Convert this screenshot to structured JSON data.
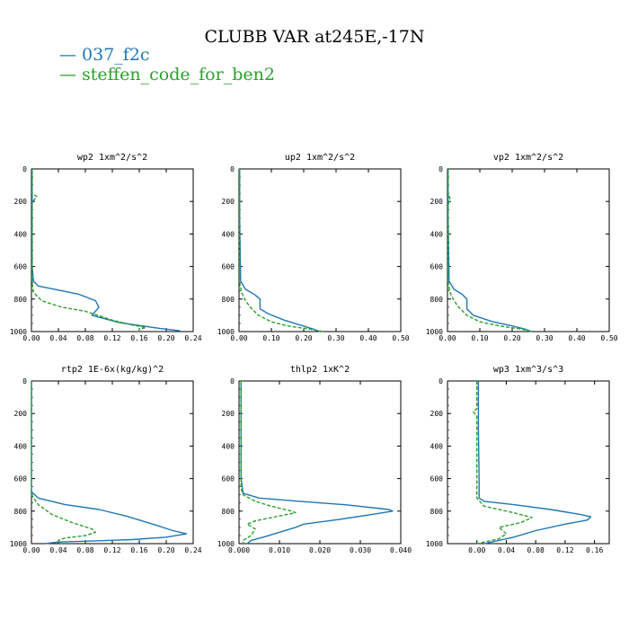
{
  "title": "CLUBB VAR at245E,-17N",
  "legend": [
    {
      "label": "— 037_f2c",
      "color": "#1f77b4"
    },
    {
      "label": "— steffen_code_for_ben2",
      "color": "#2ca02c"
    }
  ],
  "chart_data": [
    {
      "type": "line",
      "title": "wp2  1xm^2/s^2",
      "xlim": [
        0,
        0.24
      ],
      "xticks": [
        "0.00",
        "0.04",
        "0.08",
        "0.12",
        "0.16",
        "0.20",
        "0.24"
      ],
      "ylim": [
        0,
        1000
      ],
      "yticks": [
        "0",
        "200",
        "400",
        "600",
        "800",
        "1000"
      ],
      "series": [
        {
          "name": "037_f2c",
          "color": "#1f77b4",
          "style": "solid",
          "points": [
            [
              0.001,
              0
            ],
            [
              0.001,
              600
            ],
            [
              0.003,
              690
            ],
            [
              0.01,
              720
            ],
            [
              0.04,
              745
            ],
            [
              0.07,
              770
            ],
            [
              0.095,
              810
            ],
            [
              0.1,
              850
            ],
            [
              0.09,
              900
            ],
            [
              0.13,
              945
            ],
            [
              0.19,
              980
            ],
            [
              0.22,
              995
            ],
            [
              0.22,
              1000
            ]
          ]
        },
        {
          "name": "steffen_code_for_ben2",
          "color": "#2ca02c",
          "style": "dashed",
          "points": [
            [
              0.001,
              0
            ],
            [
              0.001,
              150
            ],
            [
              0.008,
              170
            ],
            [
              0.002,
              200
            ],
            [
              0.001,
              220
            ],
            [
              0.001,
              700
            ],
            [
              0.003,
              760
            ],
            [
              0.015,
              810
            ],
            [
              0.045,
              850
            ],
            [
              0.08,
              875
            ],
            [
              0.12,
              930
            ],
            [
              0.15,
              960
            ],
            [
              0.17,
              975
            ],
            [
              0.16,
              985
            ],
            [
              0.16,
              1000
            ]
          ]
        }
      ]
    },
    {
      "type": "line",
      "title": "up2  1xm^2/s^2",
      "xlim": [
        0,
        0.5
      ],
      "xticks": [
        "0.00",
        "0.10",
        "0.20",
        "0.30",
        "0.40",
        "0.50"
      ],
      "ylim": [
        0,
        1000
      ],
      "yticks": [
        "0",
        "200",
        "400",
        "600",
        "800",
        "1000"
      ],
      "series": [
        {
          "name": "037_f2c",
          "color": "#1f77b4",
          "style": "solid",
          "points": [
            [
              0.002,
              0
            ],
            [
              0.002,
              300
            ],
            [
              0.005,
              690
            ],
            [
              0.02,
              740
            ],
            [
              0.05,
              775
            ],
            [
              0.065,
              800
            ],
            [
              0.065,
              860
            ],
            [
              0.09,
              890
            ],
            [
              0.14,
              930
            ],
            [
              0.19,
              960
            ],
            [
              0.23,
              985
            ],
            [
              0.25,
              1000
            ]
          ]
        },
        {
          "name": "steffen_code_for_ben2",
          "color": "#2ca02c",
          "style": "dashed",
          "points": [
            [
              0.002,
              0
            ],
            [
              0.002,
              700
            ],
            [
              0.008,
              760
            ],
            [
              0.02,
              810
            ],
            [
              0.035,
              850
            ],
            [
              0.06,
              900
            ],
            [
              0.1,
              940
            ],
            [
              0.15,
              965
            ],
            [
              0.22,
              985
            ],
            [
              0.26,
              1000
            ]
          ]
        }
      ]
    },
    {
      "type": "line",
      "title": "vp2  1xm^2/s^2",
      "xlim": [
        0,
        0.5
      ],
      "xticks": [
        "0.00",
        "0.10",
        "0.20",
        "0.30",
        "0.40",
        "0.50"
      ],
      "ylim": [
        0,
        1000
      ],
      "yticks": [
        "0",
        "200",
        "400",
        "600",
        "800",
        "1000"
      ],
      "series": [
        {
          "name": "037_f2c",
          "color": "#1f77b4",
          "style": "solid",
          "points": [
            [
              0.002,
              0
            ],
            [
              0.002,
              300
            ],
            [
              0.005,
              690
            ],
            [
              0.02,
              740
            ],
            [
              0.045,
              770
            ],
            [
              0.06,
              800
            ],
            [
              0.06,
              860
            ],
            [
              0.08,
              900
            ],
            [
              0.14,
              940
            ],
            [
              0.2,
              965
            ],
            [
              0.24,
              985
            ],
            [
              0.26,
              1000
            ]
          ]
        },
        {
          "name": "steffen_code_for_ben2",
          "color": "#2ca02c",
          "style": "dashed",
          "points": [
            [
              0.002,
              0
            ],
            [
              0.002,
              150
            ],
            [
              0.008,
              185
            ],
            [
              0.002,
              220
            ],
            [
              0.002,
              700
            ],
            [
              0.008,
              760
            ],
            [
              0.02,
              810
            ],
            [
              0.035,
              850
            ],
            [
              0.06,
              900
            ],
            [
              0.1,
              940
            ],
            [
              0.16,
              965
            ],
            [
              0.23,
              985
            ],
            [
              0.26,
              1000
            ]
          ]
        }
      ]
    },
    {
      "type": "line",
      "title": "rtp2  1E-6x(kg/kg)^2",
      "xlim": [
        0,
        0.24
      ],
      "xticks": [
        "0.00",
        "0.04",
        "0.08",
        "0.12",
        "0.16",
        "0.20",
        "0.24"
      ],
      "ylim": [
        0,
        1000
      ],
      "yticks": [
        "0",
        "200",
        "400",
        "600",
        "800",
        "1000"
      ],
      "series": [
        {
          "name": "037_f2c",
          "color": "#1f77b4",
          "style": "solid",
          "points": [
            [
              0.0,
              0
            ],
            [
              0.0,
              680
            ],
            [
              0.01,
              720
            ],
            [
              0.05,
              760
            ],
            [
              0.1,
              790
            ],
            [
              0.14,
              830
            ],
            [
              0.18,
              880
            ],
            [
              0.21,
              920
            ],
            [
              0.23,
              940
            ],
            [
              0.2,
              960
            ],
            [
              0.15,
              975
            ],
            [
              0.08,
              985
            ],
            [
              0.04,
              990
            ],
            [
              0.02,
              1000
            ]
          ]
        },
        {
          "name": "steffen_code_for_ben2",
          "color": "#2ca02c",
          "style": "dashed",
          "points": [
            [
              0.0,
              0
            ],
            [
              0.0,
              700
            ],
            [
              0.01,
              760
            ],
            [
              0.03,
              820
            ],
            [
              0.06,
              870
            ],
            [
              0.09,
              910
            ],
            [
              0.095,
              930
            ],
            [
              0.08,
              950
            ],
            [
              0.05,
              965
            ],
            [
              0.04,
              980
            ],
            [
              0.04,
              1000
            ]
          ]
        }
      ]
    },
    {
      "type": "line",
      "title": "thlp2  1xK^2",
      "xlim": [
        0,
        0.04
      ],
      "xticks": [
        "0.000",
        "0.010",
        "0.020",
        "0.030",
        "0.040"
      ],
      "ylim": [
        0,
        1000
      ],
      "yticks": [
        "0",
        "200",
        "400",
        "600",
        "800",
        "1000"
      ],
      "series": [
        {
          "name": "037_f2c",
          "color": "#1f77b4",
          "style": "solid",
          "points": [
            [
              0.0005,
              0
            ],
            [
              0.0005,
              600
            ],
            [
              0.001,
              690
            ],
            [
              0.005,
              720
            ],
            [
              0.015,
              740
            ],
            [
              0.026,
              760
            ],
            [
              0.037,
              790
            ],
            [
              0.038,
              800
            ],
            [
              0.033,
              820
            ],
            [
              0.025,
              850
            ],
            [
              0.016,
              880
            ],
            [
              0.014,
              900
            ],
            [
              0.01,
              930
            ],
            [
              0.006,
              960
            ],
            [
              0.003,
              980
            ],
            [
              0.002,
              1000
            ]
          ]
        },
        {
          "name": "steffen_code_for_ben2",
          "color": "#2ca02c",
          "style": "dashed",
          "points": [
            [
              0.0005,
              0
            ],
            [
              0.0005,
              660
            ],
            [
              0.001,
              700
            ],
            [
              0.004,
              740
            ],
            [
              0.008,
              770
            ],
            [
              0.013,
              800
            ],
            [
              0.014,
              810
            ],
            [
              0.01,
              830
            ],
            [
              0.004,
              860
            ],
            [
              0.002,
              880
            ],
            [
              0.004,
              910
            ],
            [
              0.003,
              950
            ],
            [
              0.001,
              980
            ],
            [
              0.001,
              1000
            ]
          ]
        }
      ]
    },
    {
      "type": "line",
      "title": "wp3  1xm^3/s^3",
      "xlim": [
        -0.04,
        0.18
      ],
      "xticks": [
        "0.00",
        "0.04",
        "0.08",
        "0.12",
        "0.16"
      ],
      "ylim": [
        0,
        1000
      ],
      "yticks": [
        "0",
        "200",
        "400",
        "600",
        "800",
        "1000"
      ],
      "series": [
        {
          "name": "037_f2c",
          "color": "#1f77b4",
          "style": "solid",
          "points": [
            [
              0.002,
              0
            ],
            [
              0.002,
              300
            ],
            [
              0.003,
              600
            ],
            [
              0.003,
              720
            ],
            [
              0.01,
              740
            ],
            [
              0.05,
              760
            ],
            [
              0.1,
              790
            ],
            [
              0.14,
              820
            ],
            [
              0.155,
              835
            ],
            [
              0.15,
              855
            ],
            [
              0.12,
              880
            ],
            [
              0.08,
              920
            ],
            [
              0.05,
              960
            ],
            [
              0.02,
              990
            ],
            [
              0.01,
              1000
            ]
          ]
        },
        {
          "name": "steffen_code_for_ben2",
          "color": "#2ca02c",
          "style": "dashed",
          "points": [
            [
              0.0,
              0
            ],
            [
              0.0,
              170
            ],
            [
              -0.005,
              190
            ],
            [
              0.0,
              215
            ],
            [
              0.0,
              300
            ],
            [
              0.0,
              720
            ],
            [
              0.01,
              770
            ],
            [
              0.05,
              810
            ],
            [
              0.075,
              840
            ],
            [
              0.06,
              870
            ],
            [
              0.03,
              900
            ],
            [
              0.04,
              940
            ],
            [
              0.03,
              970
            ],
            [
              0.01,
              990
            ],
            [
              0.0,
              1000
            ]
          ]
        }
      ]
    }
  ]
}
